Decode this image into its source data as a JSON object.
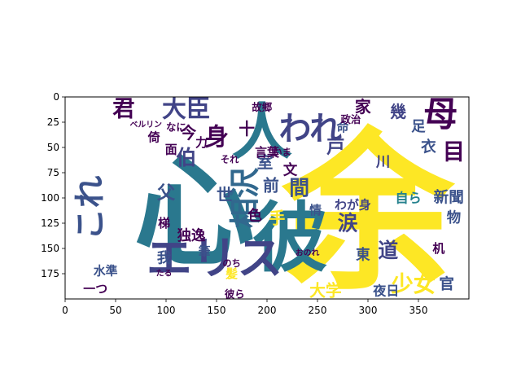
{
  "chart_data": {
    "type": "wordcloud",
    "title": "",
    "xlabel": "",
    "ylabel": "",
    "xlim": [
      0,
      400
    ],
    "ylim": [
      200,
      0
    ],
    "x_ticks": [
      0,
      50,
      100,
      150,
      200,
      250,
      300,
      350
    ],
    "y_ticks": [
      0,
      25,
      50,
      75,
      100,
      125,
      150,
      175
    ],
    "x_tick_labels": [
      "0",
      "50",
      "100",
      "150",
      "200",
      "250",
      "300",
      "350"
    ],
    "y_tick_labels": [
      "0",
      "25",
      "50",
      "75",
      "100",
      "125",
      "150",
      "175"
    ],
    "words": [
      {
        "text": "余",
        "x": 300,
        "y": 115,
        "size": 170,
        "color": "#fde725"
      },
      {
        "text": "心",
        "x": 128,
        "y": 115,
        "size": 120,
        "color": "#2a788e"
      },
      {
        "text": "彼",
        "x": 223,
        "y": 140,
        "size": 75,
        "color": "#2a788e"
      },
      {
        "text": "人",
        "x": 195,
        "y": 35,
        "size": 60,
        "color": "#2a788e"
      },
      {
        "text": "エリス",
        "x": 148,
        "y": 160,
        "size": 45,
        "color": "#414487"
      },
      {
        "text": "これ",
        "x": 25,
        "y": 110,
        "size": 32,
        "color": "#3b528b",
        "vertical": true
      },
      {
        "text": "母",
        "x": 372,
        "y": 17,
        "size": 34,
        "color": "#440154"
      },
      {
        "text": "われ",
        "x": 243,
        "y": 32,
        "size": 32,
        "color": "#414487"
      },
      {
        "text": "大臣",
        "x": 120,
        "y": 12,
        "size": 24,
        "color": "#414487"
      },
      {
        "text": "君",
        "x": 58,
        "y": 12,
        "size": 22,
        "color": "#440154"
      },
      {
        "text": "相沢",
        "x": 178,
        "y": 100,
        "size": 30,
        "color": "#31688e",
        "vertical": true
      },
      {
        "text": "身",
        "x": 150,
        "y": 40,
        "size": 24,
        "color": "#440154"
      },
      {
        "text": "少女",
        "x": 345,
        "y": 186,
        "size": 22,
        "color": "#fde725"
      },
      {
        "text": "大学",
        "x": 258,
        "y": 192,
        "size": 16,
        "color": "#fde725"
      },
      {
        "text": "新聞",
        "x": 380,
        "y": 100,
        "size": 15,
        "color": "#3b528b"
      },
      {
        "text": "自ら",
        "x": 340,
        "y": 100,
        "size": 13,
        "color": "#26828e"
      },
      {
        "text": "道",
        "x": 320,
        "y": 152,
        "size": 20,
        "color": "#414487"
      },
      {
        "text": "東",
        "x": 295,
        "y": 157,
        "size": 14,
        "color": "#3b528b"
      },
      {
        "text": "夜日",
        "x": 318,
        "y": 192,
        "size": 13,
        "color": "#3b528b"
      },
      {
        "text": "官",
        "x": 378,
        "y": 186,
        "size": 15,
        "color": "#3b528b"
      },
      {
        "text": "目",
        "x": 385,
        "y": 55,
        "size": 22,
        "color": "#440154"
      },
      {
        "text": "衣",
        "x": 360,
        "y": 50,
        "size": 15,
        "color": "#3b528b"
      },
      {
        "text": "足",
        "x": 350,
        "y": 30,
        "size": 14,
        "color": "#3b528b"
      },
      {
        "text": "幾",
        "x": 330,
        "y": 15,
        "size": 16,
        "color": "#414487"
      },
      {
        "text": "家",
        "x": 295,
        "y": 10,
        "size": 16,
        "color": "#440154"
      },
      {
        "text": "川",
        "x": 315,
        "y": 65,
        "size": 14,
        "color": "#414487"
      },
      {
        "text": "命",
        "x": 275,
        "y": 30,
        "size": 12,
        "color": "#3b528b"
      },
      {
        "text": "戸",
        "x": 268,
        "y": 50,
        "size": 18,
        "color": "#414487"
      },
      {
        "text": "室",
        "x": 198,
        "y": 65,
        "size": 16,
        "color": "#3b528b"
      },
      {
        "text": "文",
        "x": 223,
        "y": 73,
        "size": 14,
        "color": "#440154"
      },
      {
        "text": "間",
        "x": 232,
        "y": 90,
        "size": 20,
        "color": "#3b528b"
      },
      {
        "text": "前",
        "x": 204,
        "y": 88,
        "size": 16,
        "color": "#3b528b"
      },
      {
        "text": "十",
        "x": 180,
        "y": 32,
        "size": 16,
        "color": "#440154"
      },
      {
        "text": "言葉",
        "x": 200,
        "y": 55,
        "size": 12,
        "color": "#440154"
      },
      {
        "text": "今",
        "x": 122,
        "y": 36,
        "size": 16,
        "color": "#440154"
      },
      {
        "text": "伯",
        "x": 120,
        "y": 60,
        "size": 20,
        "color": "#414487"
      },
      {
        "text": "父",
        "x": 100,
        "y": 95,
        "size": 18,
        "color": "#3b528b"
      },
      {
        "text": "世",
        "x": 158,
        "y": 97,
        "size": 16,
        "color": "#3b528b"
      },
      {
        "text": "手",
        "x": 210,
        "y": 120,
        "size": 16,
        "color": "#fde725"
      },
      {
        "text": "色",
        "x": 188,
        "y": 118,
        "size": 14,
        "color": "#440154"
      },
      {
        "text": "独逸",
        "x": 125,
        "y": 138,
        "size": 14,
        "color": "#440154"
      },
      {
        "text": "我",
        "x": 98,
        "y": 160,
        "size": 14,
        "color": "#3b528b"
      },
      {
        "text": "筆",
        "x": 138,
        "y": 153,
        "size": 12,
        "color": "#3b528b"
      },
      {
        "text": "梯",
        "x": 98,
        "y": 125,
        "size": 12,
        "color": "#440154"
      },
      {
        "text": "水準",
        "x": 40,
        "y": 172,
        "size": 12,
        "color": "#3b528b"
      },
      {
        "text": "一つ",
        "x": 30,
        "y": 190,
        "size": 12,
        "color": "#440154"
      },
      {
        "text": "彼ら",
        "x": 168,
        "y": 195,
        "size": 10,
        "color": "#440154"
      },
      {
        "text": "髪",
        "x": 165,
        "y": 175,
        "size": 12,
        "color": "#fde725"
      },
      {
        "text": "情",
        "x": 248,
        "y": 112,
        "size": 12,
        "color": "#3b528b"
      },
      {
        "text": "わが身",
        "x": 285,
        "y": 107,
        "size": 12,
        "color": "#414487"
      },
      {
        "text": "政治",
        "x": 283,
        "y": 22,
        "size": 10,
        "color": "#440154"
      },
      {
        "text": "故郷",
        "x": 195,
        "y": 10,
        "size": 10,
        "color": "#440154"
      },
      {
        "text": "なに",
        "x": 110,
        "y": 30,
        "size": 10,
        "color": "#440154"
      },
      {
        "text": "倚",
        "x": 88,
        "y": 40,
        "size": 12,
        "color": "#440154"
      },
      {
        "text": "面",
        "x": 105,
        "y": 52,
        "size": 12,
        "color": "#440154"
      },
      {
        "text": "力",
        "x": 135,
        "y": 45,
        "size": 12,
        "color": "#440154"
      },
      {
        "text": "涙",
        "x": 280,
        "y": 125,
        "size": 20,
        "color": "#414487"
      },
      {
        "text": "物",
        "x": 385,
        "y": 120,
        "size": 14,
        "color": "#3b528b"
      },
      {
        "text": "机",
        "x": 370,
        "y": 150,
        "size": 12,
        "color": "#440154"
      },
      {
        "text": "それ",
        "x": 163,
        "y": 62,
        "size": 9,
        "color": "#440154"
      },
      {
        "text": "いま",
        "x": 215,
        "y": 55,
        "size": 9,
        "color": "#440154"
      },
      {
        "text": "のち",
        "x": 165,
        "y": 165,
        "size": 9,
        "color": "#440154"
      },
      {
        "text": "おのれ",
        "x": 240,
        "y": 155,
        "size": 8,
        "color": "#440154"
      },
      {
        "text": "たる",
        "x": 98,
        "y": 175,
        "size": 8,
        "color": "#440154"
      },
      {
        "text": "ベルリン",
        "x": 80,
        "y": 28,
        "size": 8,
        "color": "#440154"
      }
    ]
  }
}
